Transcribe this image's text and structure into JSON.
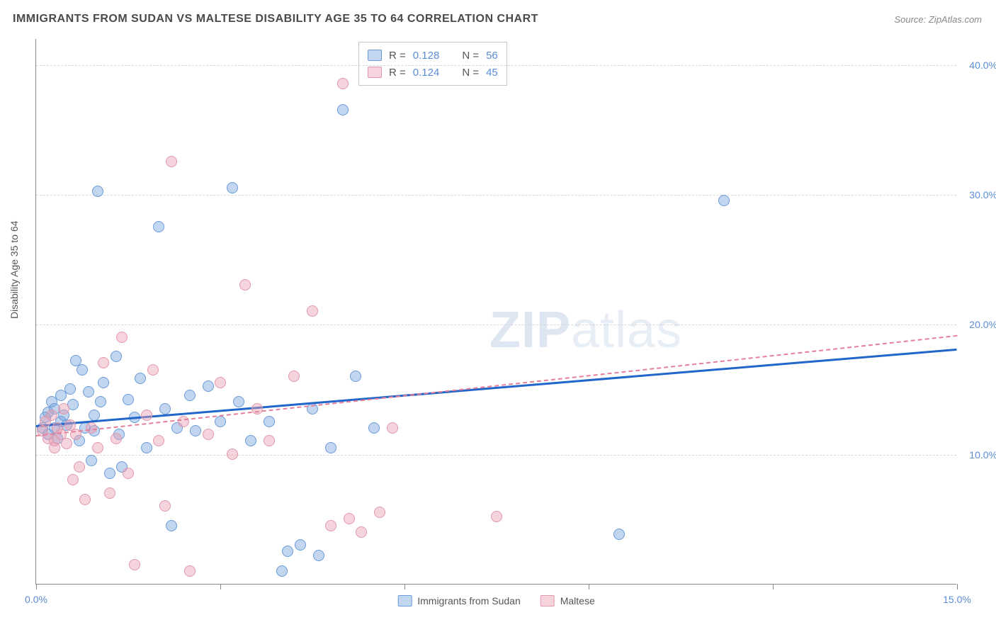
{
  "title": "IMMIGRANTS FROM SUDAN VS MALTESE DISABILITY AGE 35 TO 64 CORRELATION CHART",
  "source": "Source: ZipAtlas.com",
  "ylabel": "Disability Age 35 to 64",
  "watermark_bold": "ZIP",
  "watermark_light": "atlas",
  "chart": {
    "type": "scatter",
    "xlim": [
      0,
      15
    ],
    "ylim": [
      0,
      42
    ],
    "xticks": [
      0,
      3,
      6,
      9,
      12,
      15
    ],
    "xtick_labels": [
      "0.0%",
      "",
      "",
      "",
      "",
      "15.0%"
    ],
    "yticks": [
      10,
      20,
      30,
      40
    ],
    "ytick_labels": [
      "10.0%",
      "20.0%",
      "30.0%",
      "40.0%"
    ],
    "grid_color": "#d8d8d8",
    "background_color": "#ffffff",
    "series": [
      {
        "name": "Immigrants from Sudan",
        "color_fill": "rgba(120,165,220,0.45)",
        "color_stroke": "#6a9bd8",
        "trend_color": "#2166c9",
        "trend_width": 3,
        "trend_dash": "solid",
        "trend": {
          "x1": 0,
          "y1": 12.3,
          "x2": 15,
          "y2": 18.2
        },
        "R": "0.128",
        "N": "56",
        "points": [
          [
            0.1,
            12.0
          ],
          [
            0.15,
            12.8
          ],
          [
            0.2,
            11.5
          ],
          [
            0.2,
            13.2
          ],
          [
            0.25,
            14.0
          ],
          [
            0.3,
            12.0
          ],
          [
            0.3,
            13.5
          ],
          [
            0.35,
            11.2
          ],
          [
            0.4,
            12.5
          ],
          [
            0.4,
            14.5
          ],
          [
            0.45,
            13.0
          ],
          [
            0.5,
            12.2
          ],
          [
            0.55,
            15.0
          ],
          [
            0.6,
            13.8
          ],
          [
            0.65,
            17.2
          ],
          [
            0.7,
            11.0
          ],
          [
            0.75,
            16.5
          ],
          [
            0.8,
            12.0
          ],
          [
            0.85,
            14.8
          ],
          [
            0.9,
            9.5
          ],
          [
            0.95,
            13.0
          ],
          [
            1.0,
            30.2
          ],
          [
            1.1,
            15.5
          ],
          [
            1.2,
            8.5
          ],
          [
            1.3,
            17.5
          ],
          [
            1.35,
            11.5
          ],
          [
            1.4,
            9.0
          ],
          [
            1.5,
            14.2
          ],
          [
            1.6,
            12.8
          ],
          [
            1.7,
            15.8
          ],
          [
            1.8,
            10.5
          ],
          [
            2.0,
            27.5
          ],
          [
            2.1,
            13.5
          ],
          [
            2.2,
            4.5
          ],
          [
            2.3,
            12.0
          ],
          [
            2.5,
            14.5
          ],
          [
            2.6,
            11.8
          ],
          [
            2.8,
            15.2
          ],
          [
            3.0,
            12.5
          ],
          [
            3.2,
            30.5
          ],
          [
            3.3,
            14.0
          ],
          [
            3.5,
            11.0
          ],
          [
            3.8,
            12.5
          ],
          [
            4.0,
            1.0
          ],
          [
            4.1,
            2.5
          ],
          [
            4.3,
            3.0
          ],
          [
            4.5,
            13.5
          ],
          [
            4.6,
            2.2
          ],
          [
            4.8,
            10.5
          ],
          [
            5.0,
            36.5
          ],
          [
            5.2,
            16.0
          ],
          [
            5.5,
            12.0
          ],
          [
            9.5,
            3.8
          ],
          [
            11.2,
            29.5
          ],
          [
            0.95,
            11.8
          ],
          [
            1.05,
            14.0
          ]
        ]
      },
      {
        "name": "Maltese",
        "color_fill": "rgba(235,160,180,0.45)",
        "color_stroke": "#e198ac",
        "trend_color": "#e57f9a",
        "trend_width": 2,
        "trend_dash": "dashed",
        "trend": {
          "x1": 0,
          "y1": 11.5,
          "x2": 15,
          "y2": 19.2
        },
        "R": "0.124",
        "N": "45",
        "points": [
          [
            0.1,
            11.8
          ],
          [
            0.15,
            12.5
          ],
          [
            0.2,
            11.2
          ],
          [
            0.25,
            13.0
          ],
          [
            0.3,
            10.5
          ],
          [
            0.35,
            12.0
          ],
          [
            0.4,
            11.5
          ],
          [
            0.45,
            13.5
          ],
          [
            0.5,
            10.8
          ],
          [
            0.55,
            12.2
          ],
          [
            0.6,
            8.0
          ],
          [
            0.65,
            11.5
          ],
          [
            0.7,
            9.0
          ],
          [
            0.8,
            6.5
          ],
          [
            0.9,
            12.0
          ],
          [
            1.0,
            10.5
          ],
          [
            1.1,
            17.0
          ],
          [
            1.2,
            7.0
          ],
          [
            1.3,
            11.2
          ],
          [
            1.4,
            19.0
          ],
          [
            1.5,
            8.5
          ],
          [
            1.6,
            1.5
          ],
          [
            1.8,
            13.0
          ],
          [
            1.9,
            16.5
          ],
          [
            2.0,
            11.0
          ],
          [
            2.1,
            6.0
          ],
          [
            2.2,
            32.5
          ],
          [
            2.4,
            12.5
          ],
          [
            2.5,
            1.0
          ],
          [
            2.8,
            11.5
          ],
          [
            3.0,
            15.5
          ],
          [
            3.2,
            10.0
          ],
          [
            3.4,
            23.0
          ],
          [
            3.6,
            13.5
          ],
          [
            3.8,
            11.0
          ],
          [
            4.2,
            16.0
          ],
          [
            4.5,
            21.0
          ],
          [
            4.8,
            4.5
          ],
          [
            5.0,
            38.5
          ],
          [
            5.1,
            5.0
          ],
          [
            5.3,
            4.0
          ],
          [
            5.6,
            5.5
          ],
          [
            5.8,
            12.0
          ],
          [
            7.5,
            5.2
          ],
          [
            0.3,
            11.0
          ]
        ]
      }
    ]
  },
  "legend_top_rows": [
    {
      "series": 0,
      "r_label": "R =",
      "n_label": "N ="
    },
    {
      "series": 1,
      "r_label": "R =",
      "n_label": "N ="
    }
  ],
  "typography": {
    "title_fontsize": 16,
    "label_fontsize": 14,
    "tick_fontsize": 14,
    "legend_fontsize": 15
  }
}
